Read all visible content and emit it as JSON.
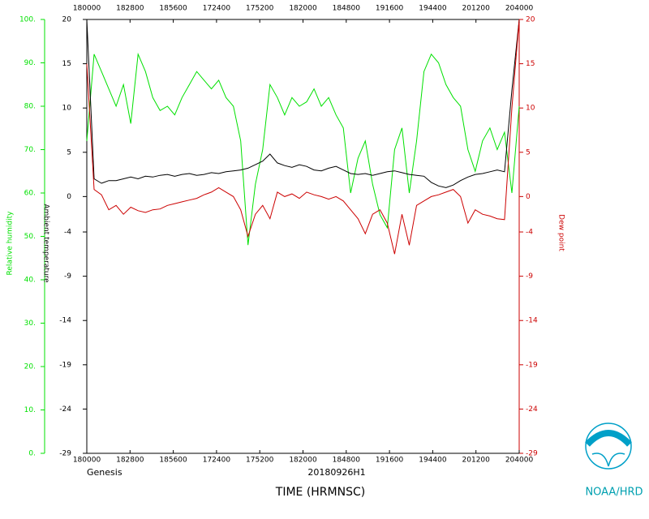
{
  "chart_data": {
    "type": "line",
    "rh_label": "Relative humidity",
    "ylabel": "Ambient temperature",
    "y2label": "Dew point",
    "xlabel": "TIME (HRMNSC)",
    "note_left": "Genesis",
    "note_center": "20180926H1",
    "org": "NOAA/HRD",
    "xtick_labels": [
      "180000",
      "182800",
      "185600",
      "172400",
      "175200",
      "182000",
      "184800",
      "191600",
      "194400",
      "201200",
      "204000"
    ],
    "rhlim": [
      0,
      100
    ],
    "rhticks": [
      {
        "value": 0,
        "label": "0."
      },
      {
        "value": 10,
        "label": "10."
      },
      {
        "value": 20,
        "label": "20."
      },
      {
        "value": 30,
        "label": "30."
      },
      {
        "value": 40,
        "label": "40."
      },
      {
        "value": 50,
        "label": "50."
      },
      {
        "value": 60,
        "label": "60."
      },
      {
        "value": 70,
        "label": "70."
      },
      {
        "value": 80,
        "label": "80."
      },
      {
        "value": 90,
        "label": "90."
      },
      {
        "value": 100,
        "label": "100."
      }
    ],
    "ylim": [
      -29,
      20
    ],
    "yticks": [
      20,
      15,
      10,
      5,
      0,
      -4,
      -9,
      -14,
      -19,
      -24,
      -29
    ],
    "y2lim": [
      -29,
      20
    ],
    "y2ticks": [
      20,
      15,
      10,
      5,
      0,
      -4,
      -9,
      -14,
      -19,
      -24,
      -29
    ],
    "series": [
      {
        "color": "#00e000",
        "axis": "rh",
        "values": [
          72,
          92,
          88,
          84,
          80,
          85,
          76,
          92,
          88,
          82,
          79,
          80,
          78,
          82,
          85,
          88,
          86,
          84,
          86,
          82,
          80,
          72,
          48,
          62,
          70,
          85,
          82,
          78,
          82,
          80,
          81,
          84,
          80,
          82,
          78,
          75,
          60,
          68,
          72,
          62,
          55,
          52,
          70,
          75,
          60,
          72,
          88,
          92,
          90,
          85,
          82,
          80,
          70,
          65,
          72,
          75,
          70,
          74,
          60,
          80
        ]
      },
      {
        "color": "#000000",
        "axis": "y",
        "values": [
          20,
          2,
          1.5,
          1.8,
          1.8,
          2.0,
          2.2,
          2.0,
          2.3,
          2.2,
          2.4,
          2.5,
          2.3,
          2.5,
          2.6,
          2.4,
          2.5,
          2.7,
          2.6,
          2.8,
          2.9,
          3.0,
          3.2,
          3.6,
          4.0,
          4.8,
          3.8,
          3.5,
          3.3,
          3.6,
          3.4,
          3.0,
          2.9,
          3.2,
          3.4,
          3.0,
          2.6,
          2.5,
          2.6,
          2.4,
          2.6,
          2.8,
          2.9,
          2.7,
          2.5,
          2.4,
          2.3,
          1.6,
          1.2,
          1.0,
          1.3,
          1.8,
          2.2,
          2.5,
          2.6,
          2.8,
          3.0,
          2.8,
          12,
          20
        ]
      },
      {
        "color": "#cc0000",
        "axis": "y2",
        "values": [
          15,
          0.8,
          0.2,
          -1.5,
          -1,
          -2,
          -1.2,
          -1.6,
          -1.8,
          -1.5,
          -1.4,
          -1,
          -0.8,
          -0.6,
          -0.4,
          -0.2,
          0.2,
          0.5,
          1,
          0.5,
          0,
          -1.5,
          -4.5,
          -2,
          -1,
          -2.5,
          0.5,
          0,
          0.3,
          -0.2,
          0.5,
          0.2,
          0,
          -0.3,
          0,
          -0.5,
          -1.5,
          -2.5,
          -4.2,
          -2,
          -1.5,
          -3,
          -6.5,
          -2,
          -5.5,
          -1,
          -0.5,
          0,
          0.2,
          0.5,
          0.8,
          0,
          -3,
          -1.5,
          -2,
          -2.2,
          -2.5,
          -2.6,
          10,
          20
        ]
      }
    ]
  }
}
